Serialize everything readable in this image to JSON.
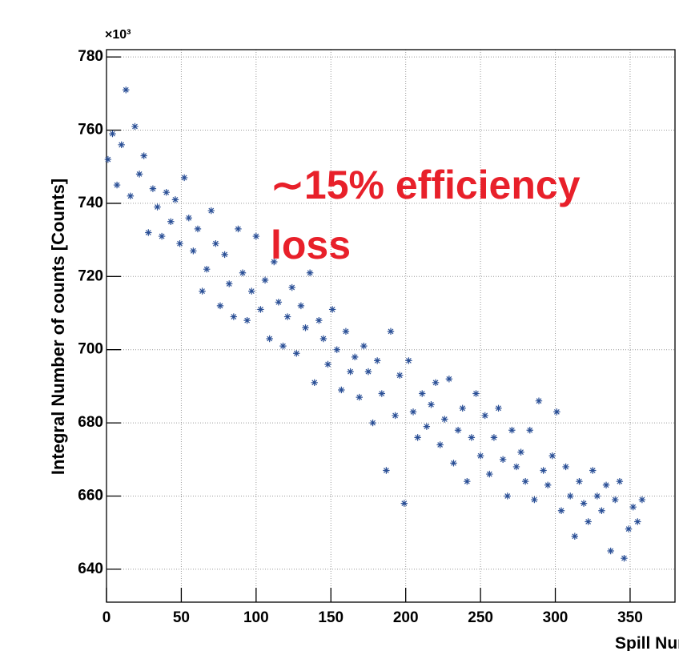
{
  "chart_data": {
    "type": "scatter",
    "exponent_label": "×10³",
    "ylabel": "Integral Number of counts [Counts]",
    "xlabel": "Spill Number",
    "annotations": [
      "∼15% efficiency",
      "loss"
    ],
    "annotation_color": "#e8202a",
    "color": "#2a4f96",
    "marker": "star",
    "grid": true,
    "xlim": [
      0,
      380
    ],
    "ylim": [
      631,
      782
    ],
    "xticks": [
      0,
      50,
      100,
      150,
      200,
      250,
      300,
      350
    ],
    "yticks": [
      640,
      660,
      680,
      700,
      720,
      740,
      760,
      780
    ],
    "x": [
      1,
      4,
      7,
      10,
      13,
      16,
      19,
      22,
      25,
      28,
      31,
      34,
      37,
      40,
      43,
      46,
      49,
      52,
      55,
      58,
      61,
      64,
      67,
      70,
      73,
      76,
      79,
      82,
      85,
      88,
      91,
      94,
      97,
      100,
      103,
      106,
      109,
      112,
      115,
      118,
      121,
      124,
      127,
      130,
      133,
      136,
      139,
      142,
      145,
      148,
      151,
      154,
      157,
      160,
      163,
      166,
      169,
      172,
      175,
      178,
      181,
      184,
      187,
      190,
      193,
      196,
      199,
      202,
      205,
      208,
      211,
      214,
      217,
      220,
      223,
      226,
      229,
      232,
      235,
      238,
      241,
      244,
      247,
      250,
      253,
      256,
      259,
      262,
      265,
      268,
      271,
      274,
      277,
      280,
      283,
      286,
      289,
      292,
      295,
      298,
      301,
      304,
      307,
      310,
      313,
      316,
      319,
      322,
      325,
      328,
      331,
      334,
      337,
      340,
      343,
      346,
      349,
      352,
      355,
      358
    ],
    "values": [
      752,
      759,
      745,
      756,
      771,
      742,
      761,
      748,
      753,
      732,
      744,
      739,
      731,
      743,
      735,
      741,
      729,
      747,
      736,
      727,
      733,
      716,
      722,
      738,
      729,
      712,
      726,
      718,
      709,
      733,
      721,
      708,
      716,
      731,
      711,
      719,
      703,
      724,
      713,
      701,
      709,
      717,
      699,
      712,
      706,
      721,
      691,
      708,
      703,
      696,
      711,
      700,
      689,
      705,
      694,
      698,
      687,
      701,
      694,
      680,
      697,
      688,
      667,
      705,
      682,
      693,
      658,
      697,
      683,
      676,
      688,
      679,
      685,
      691,
      674,
      681,
      692,
      669,
      678,
      684,
      664,
      676,
      688,
      671,
      682,
      666,
      676,
      684,
      670,
      660,
      678,
      668,
      672,
      664,
      678,
      659,
      686,
      667,
      663,
      671,
      683,
      656,
      668,
      660,
      649,
      664,
      658,
      653,
      667,
      660,
      656,
      663,
      645,
      659,
      664,
      643,
      651,
      657,
      653,
      659
    ]
  }
}
